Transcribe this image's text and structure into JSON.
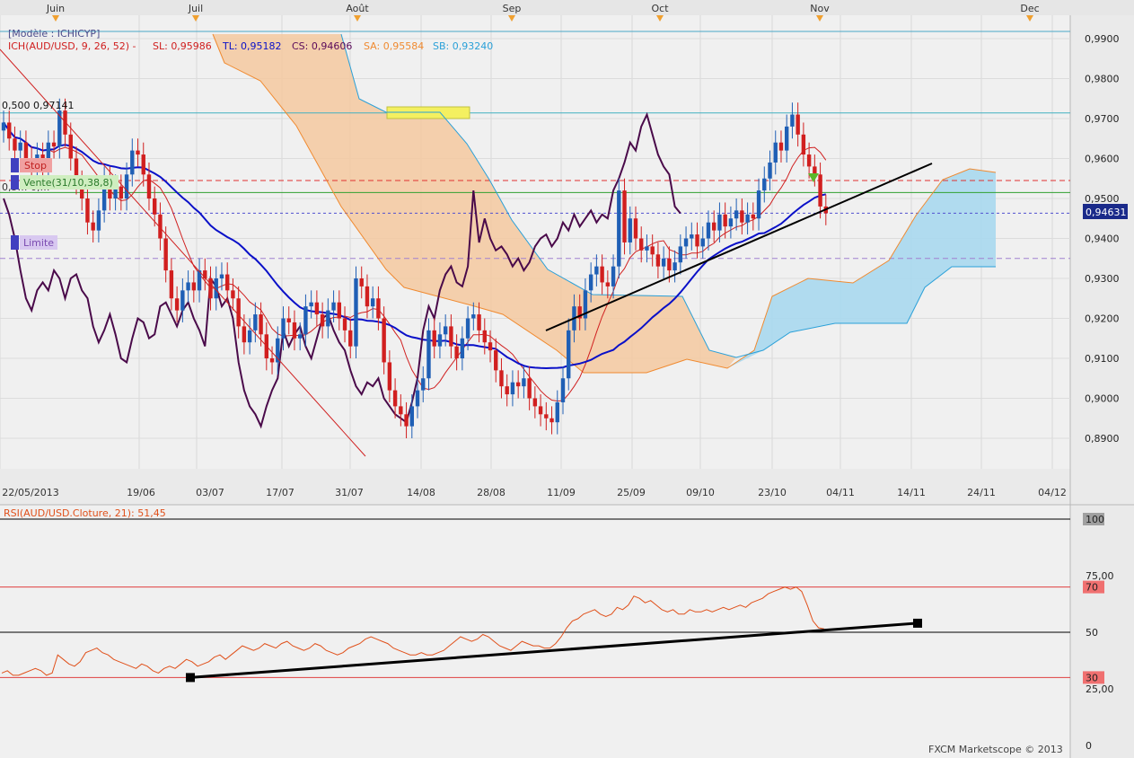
{
  "header": {
    "model_label": "[Modèle : ICHICYP]",
    "indicator_name": "ICH(AUD/USD, 9, 26, 52) -",
    "sl": "SL: 0,95986",
    "tl": "TL: 0,95182",
    "cs": "CS: 0,94606",
    "sa": "SA: 0,95584",
    "sb": "SB: 0,93240"
  },
  "colors": {
    "bull": "#1f5fb5",
    "bear": "#d11f1f",
    "kijun": "#0a10c8",
    "tenkan": "#d02020",
    "chikou": "#4a0a4a",
    "span_a": "#f08a30",
    "span_b": "#2aa0d8",
    "cloud_bear": "#f5c9a0",
    "cloud_bull": "#a8d8ee",
    "rsi": "#e0501a"
  },
  "orders": {
    "stop_label": "Stop",
    "sell_label": "Vente(31/10,38,8)",
    "limit_label": "Limite",
    "fib_label": "0,500 0,97141",
    "small_label": "0,5… 0,…",
    "current_price": "0,94631"
  },
  "top_months": [
    "Juin",
    "Juil",
    "Août",
    "Sep",
    "Oct",
    "Nov",
    "Dec"
  ],
  "date_ticks": [
    "22/05/2013",
    "19/06",
    "03/07",
    "17/07",
    "31/07",
    "14/08",
    "28/08",
    "11/09",
    "25/09",
    "09/10",
    "23/10",
    "04/11",
    "14/11",
    "24/11",
    "04/12"
  ],
  "price_ticks": [
    "0,9900",
    "0,9800",
    "0,9700",
    "0,9600",
    "0,9500",
    "0,9400",
    "0,9300",
    "0,9200",
    "0,9100",
    "0,9000",
    "0,8900"
  ],
  "rsi": {
    "title": "RSI(AUD/USD.Cloture, 21): 51,45",
    "ticks": [
      "100",
      "75,00",
      "70",
      "50",
      "30",
      "25,00",
      "0"
    ]
  },
  "credit": "FXCM Marketscope © 2013",
  "chart_data": [
    {
      "type": "candlestick",
      "title": "ICH(AUD/USD, 9, 26, 52)",
      "ylim": [
        0.884,
        0.9925
      ],
      "x_ticks": [
        "22/05/2013",
        "19/06",
        "03/07",
        "17/07",
        "31/07",
        "14/08",
        "28/08",
        "11/09",
        "25/09",
        "09/10",
        "23/10",
        "04/11",
        "14/11",
        "24/11",
        "04/12"
      ],
      "levels": {
        "fib_500": 0.97141,
        "stop": 0.9545,
        "entry": 0.9515,
        "current": 0.94631,
        "limit": 0.935,
        "top_line": 0.9918
      },
      "closes": [
        0.969,
        0.965,
        0.962,
        0.964,
        0.96,
        0.957,
        0.961,
        0.958,
        0.964,
        0.963,
        0.972,
        0.966,
        0.96,
        0.954,
        0.95,
        0.944,
        0.942,
        0.947,
        0.955,
        0.95,
        0.953,
        0.95,
        0.956,
        0.962,
        0.961,
        0.956,
        0.95,
        0.946,
        0.94,
        0.932,
        0.925,
        0.922,
        0.927,
        0.929,
        0.927,
        0.932,
        0.93,
        0.925,
        0.93,
        0.931,
        0.927,
        0.925,
        0.918,
        0.914,
        0.917,
        0.921,
        0.916,
        0.91,
        0.909,
        0.915,
        0.92,
        0.919,
        0.915,
        0.916,
        0.923,
        0.924,
        0.921,
        0.918,
        0.922,
        0.924,
        0.92,
        0.917,
        0.913,
        0.93,
        0.928,
        0.923,
        0.925,
        0.92,
        0.909,
        0.902,
        0.898,
        0.896,
        0.893,
        0.898,
        0.902,
        0.905,
        0.917,
        0.913,
        0.916,
        0.918,
        0.913,
        0.91,
        0.915,
        0.92,
        0.921,
        0.917,
        0.914,
        0.912,
        0.907,
        0.903,
        0.901,
        0.904,
        0.903,
        0.905,
        0.9,
        0.898,
        0.896,
        0.895,
        0.894,
        0.899,
        0.905,
        0.917,
        0.923,
        0.92,
        0.927,
        0.931,
        0.933,
        0.929,
        0.928,
        0.933,
        0.952,
        0.939,
        0.945,
        0.94,
        0.937,
        0.938,
        0.936,
        0.933,
        0.935,
        0.932,
        0.934,
        0.938,
        0.94,
        0.941,
        0.938,
        0.94,
        0.944,
        0.942,
        0.946,
        0.943,
        0.945,
        0.947,
        0.944,
        0.946,
        0.945,
        0.952,
        0.955,
        0.959,
        0.964,
        0.962,
        0.968,
        0.971,
        0.966,
        0.961,
        0.958,
        0.956,
        0.948,
        0.9463
      ],
      "rsi": {
        "ylim": [
          0,
          100
        ],
        "levels": [
          70,
          50,
          30
        ],
        "values": [
          32,
          33,
          31,
          31,
          32,
          33,
          34,
          33,
          31,
          32,
          40,
          38,
          36,
          35,
          37,
          41,
          42,
          43,
          41,
          40,
          38,
          37,
          36,
          35,
          34,
          36,
          35,
          33,
          32,
          34,
          35,
          34,
          36,
          38,
          37,
          35,
          36,
          37,
          39,
          40,
          38,
          40,
          42,
          44,
          43,
          42,
          43,
          45,
          44,
          43,
          45,
          46,
          44,
          43,
          42,
          43,
          45,
          44,
          42,
          41,
          40,
          41,
          43,
          44,
          45,
          47,
          48,
          47,
          46,
          45,
          43,
          42,
          41,
          40,
          40,
          41,
          40,
          40,
          41,
          42,
          44,
          46,
          48,
          47,
          46,
          47,
          49,
          48,
          46,
          44,
          43,
          42,
          44,
          46,
          45,
          44,
          44,
          43,
          43,
          45,
          48,
          52,
          55,
          56,
          58,
          59,
          60,
          58,
          57,
          58,
          61,
          60,
          62,
          66,
          65,
          63,
          64,
          62,
          60,
          59,
          60,
          58,
          58,
          60,
          59,
          59,
          60,
          59,
          60,
          61,
          60,
          61,
          62,
          61,
          63,
          64,
          65,
          67,
          68,
          69,
          70,
          69,
          70,
          68,
          62,
          55,
          52,
          51.45
        ],
        "trendline": {
          "from_value": 30,
          "to_value": 54
        }
      }
    }
  ]
}
